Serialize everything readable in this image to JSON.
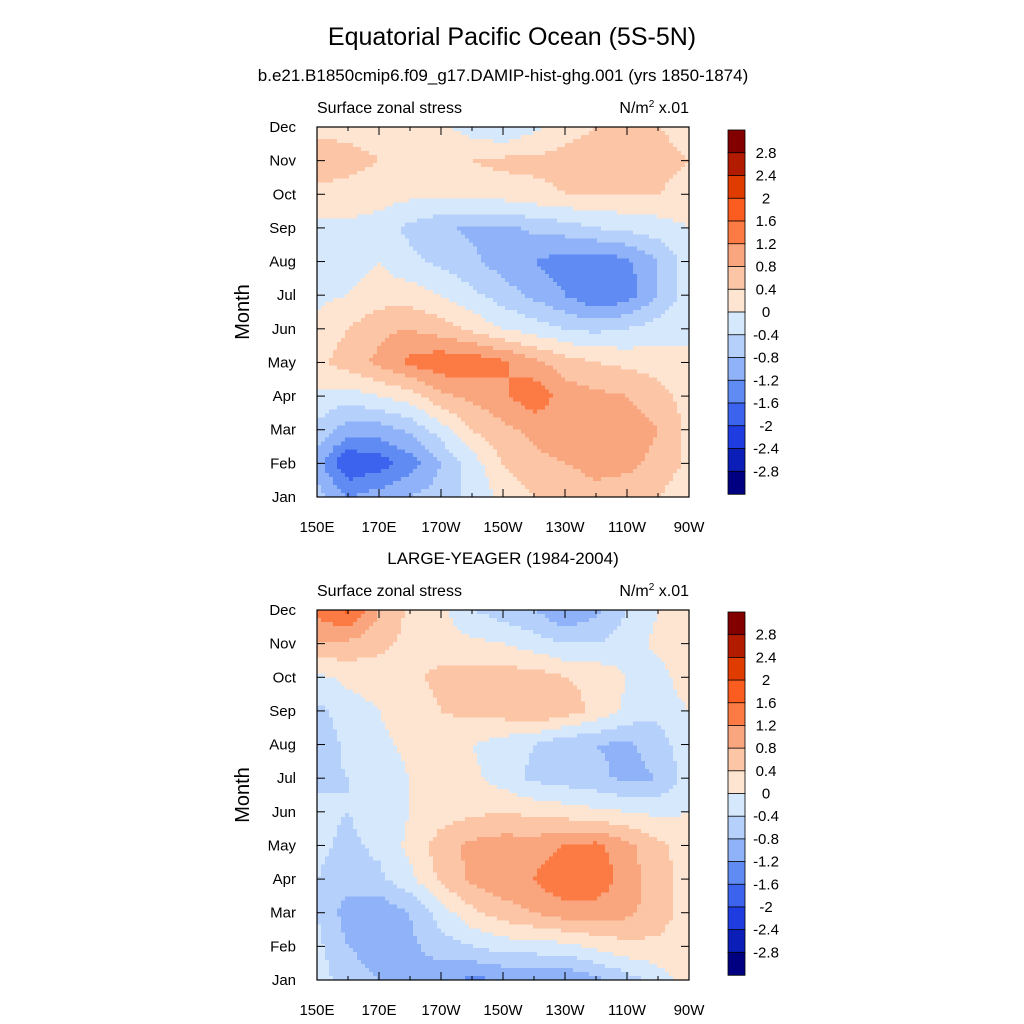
{
  "title": "Equatorial Pacific Ocean (5S-5N)",
  "colorbar": {
    "labels": [
      "2.8",
      "2.4",
      "2",
      "1.6",
      "1.2",
      "0.8",
      "0.4",
      "0",
      "-0.4",
      "-0.8",
      "-1.2",
      "-1.6",
      "-2",
      "-2.4",
      "-2.8"
    ],
    "colors": [
      "#830000",
      "#b31b00",
      "#e03c00",
      "#fb5d20",
      "#fc7a44",
      "#f9a57e",
      "#fbc5a6",
      "#fde5d2",
      "#d6e8fb",
      "#b5d0fa",
      "#8fb2f8",
      "#5f8bf3",
      "#3c63ee",
      "#1f3ce1",
      "#0b1fb8",
      "#000080"
    ]
  },
  "panels": [
    {
      "subtitle": "b.e21.B1850cmip6.f09_g17.DAMIP-hist-ghg.001 (yrs 1850-1874)",
      "variable": "Surface zonal stress",
      "units": "N/m",
      "units_sup": "2",
      "units_scale": " x.01",
      "ylabel": "Month"
    },
    {
      "subtitle": "LARGE-YEAGER (1984-2004)",
      "variable": "Surface zonal stress",
      "units": "N/m",
      "units_sup": "2",
      "units_scale": " x.01",
      "ylabel": "Month"
    }
  ],
  "chart_data": [
    {
      "type": "heatmap",
      "title": "Equatorial Pacific Ocean (5S-5N)",
      "subtitle": "b.e21.B1850cmip6.f09_g17.DAMIP-hist-ghg.001 (yrs 1850-1874)",
      "variable": "Surface zonal stress",
      "units": "N/m^2 x.01",
      "ylabel": "Month",
      "x_ticks": [
        "150E",
        "170E",
        "170W",
        "150W",
        "130W",
        "110W",
        "90W"
      ],
      "x": [
        150,
        160,
        170,
        180,
        190,
        200,
        210,
        220,
        230,
        240,
        250,
        260,
        270
      ],
      "y_ticks": [
        "Jan",
        "Feb",
        "Mar",
        "Apr",
        "May",
        "Jun",
        "Jul",
        "Aug",
        "Sep",
        "Oct",
        "Nov",
        "Dec"
      ],
      "contour_levels": [
        -2.8,
        -2.4,
        -2,
        -1.6,
        -1.2,
        -0.8,
        -0.4,
        0,
        0.4,
        0.8,
        1.2,
        1.6,
        2,
        2.4,
        2.8
      ],
      "z": [
        [
          -0.6,
          -1.2,
          -1.0,
          -0.8,
          -0.6,
          -0.3,
          0.1,
          0.4,
          0.6,
          0.7,
          0.6,
          0.4,
          0.1
        ],
        [
          -1.0,
          -2.0,
          -1.8,
          -1.4,
          -0.8,
          -0.2,
          0.4,
          0.7,
          0.8,
          0.9,
          0.9,
          0.7,
          0.3
        ],
        [
          -0.5,
          -1.0,
          -1.0,
          -0.7,
          -0.2,
          0.4,
          0.7,
          0.9,
          1.0,
          1.0,
          1.0,
          0.8,
          0.3
        ],
        [
          -0.1,
          -0.2,
          0.0,
          0.2,
          0.7,
          0.9,
          1.1,
          1.5,
          1.0,
          0.9,
          0.8,
          0.6,
          0.2
        ],
        [
          0.3,
          0.6,
          0.9,
          1.3,
          1.5,
          1.5,
          1.3,
          0.9,
          0.6,
          0.4,
          0.3,
          0.2,
          0.0
        ],
        [
          0.1,
          0.4,
          0.7,
          0.8,
          0.6,
          0.3,
          0.0,
          -0.2,
          -0.4,
          -0.5,
          -0.4,
          -0.2,
          0.0
        ],
        [
          -0.1,
          0.0,
          0.2,
          0.2,
          0.0,
          -0.3,
          -0.6,
          -0.9,
          -1.2,
          -1.6,
          -1.4,
          -0.8,
          -0.2
        ],
        [
          -0.2,
          -0.2,
          0.0,
          -0.3,
          -0.5,
          -0.7,
          -1.0,
          -1.2,
          -1.4,
          -1.5,
          -1.3,
          -0.8,
          -0.2
        ],
        [
          -0.1,
          -0.1,
          -0.2,
          -0.5,
          -0.7,
          -0.9,
          -0.9,
          -0.7,
          -0.6,
          -0.4,
          -0.3,
          -0.2,
          0.0
        ],
        [
          0.3,
          0.3,
          0.2,
          0.1,
          0.1,
          0.2,
          0.2,
          0.3,
          0.4,
          0.4,
          0.4,
          0.4,
          0.3
        ],
        [
          0.6,
          0.5,
          0.4,
          0.3,
          0.4,
          0.4,
          0.5,
          0.5,
          0.5,
          0.5,
          0.5,
          0.5,
          0.4
        ],
        [
          0.3,
          0.3,
          0.3,
          0.2,
          0.1,
          -0.2,
          -0.4,
          -0.1,
          0.3,
          0.4,
          0.4,
          0.4,
          0.3
        ]
      ]
    },
    {
      "type": "heatmap",
      "subtitle": "LARGE-YEAGER (1984-2004)",
      "variable": "Surface zonal stress",
      "units": "N/m^2 x.01",
      "ylabel": "Month",
      "x_ticks": [
        "150E",
        "170E",
        "170W",
        "150W",
        "130W",
        "110W",
        "90W"
      ],
      "x": [
        150,
        160,
        170,
        180,
        190,
        200,
        210,
        220,
        230,
        240,
        250,
        260,
        270
      ],
      "y_ticks": [
        "Jan",
        "Feb",
        "Mar",
        "Apr",
        "May",
        "Jun",
        "Jul",
        "Aug",
        "Sep",
        "Oct",
        "Nov",
        "Dec"
      ],
      "contour_levels": [
        -2.8,
        -2.4,
        -2,
        -1.6,
        -1.2,
        -0.8,
        -0.4,
        0,
        0.4,
        0.8,
        1.2,
        1.6,
        2,
        2.4,
        2.8
      ],
      "z": [
        [
          -0.2,
          -0.6,
          -0.8,
          -0.9,
          -1.1,
          -1.3,
          -1.2,
          -1.1,
          -1.2,
          -0.9,
          -0.6,
          -0.2,
          0.2
        ],
        [
          -0.3,
          -0.8,
          -1.0,
          -0.9,
          -0.6,
          -0.4,
          -0.2,
          -0.2,
          -0.1,
          0.1,
          0.3,
          0.3,
          0.2
        ],
        [
          -0.4,
          -1.0,
          -1.1,
          -0.8,
          -0.2,
          0.3,
          0.6,
          0.8,
          1.0,
          1.0,
          0.9,
          0.6,
          0.2
        ],
        [
          -0.4,
          -0.6,
          -0.5,
          -0.1,
          0.5,
          0.9,
          1.1,
          1.2,
          1.6,
          1.5,
          1.0,
          0.6,
          0.2
        ],
        [
          -0.3,
          -0.5,
          -0.3,
          0.1,
          0.6,
          0.9,
          1.0,
          1.0,
          1.2,
          1.3,
          0.9,
          0.5,
          0.2
        ],
        [
          -0.3,
          -0.4,
          -0.2,
          0.0,
          0.2,
          0.3,
          0.4,
          0.3,
          0.2,
          0.1,
          0.0,
          -0.1,
          0.0
        ],
        [
          -0.5,
          -0.4,
          -0.2,
          0.0,
          0.1,
          0.1,
          -0.2,
          -0.5,
          -0.6,
          -0.7,
          -0.9,
          -0.8,
          -0.2
        ],
        [
          -0.7,
          -0.3,
          -0.1,
          0.1,
          0.2,
          0.0,
          -0.2,
          -0.4,
          -0.7,
          -0.8,
          -0.9,
          -0.6,
          -0.1
        ],
        [
          -0.5,
          -0.2,
          0.0,
          0.2,
          0.4,
          0.5,
          0.6,
          0.8,
          0.6,
          0.3,
          -0.1,
          -0.3,
          0.0
        ],
        [
          -0.1,
          0.1,
          0.2,
          0.3,
          0.5,
          0.6,
          0.6,
          0.6,
          0.4,
          0.3,
          0.0,
          -0.2,
          0.3
        ],
        [
          0.8,
          0.7,
          0.5,
          0.3,
          0.2,
          0.1,
          0.0,
          -0.2,
          -0.4,
          -0.4,
          -0.2,
          0.1,
          0.3
        ],
        [
          1.3,
          1.7,
          0.8,
          0.3,
          0.1,
          -0.4,
          -0.6,
          -0.8,
          -1.2,
          -0.9,
          -0.4,
          0.0,
          0.3
        ]
      ]
    }
  ]
}
